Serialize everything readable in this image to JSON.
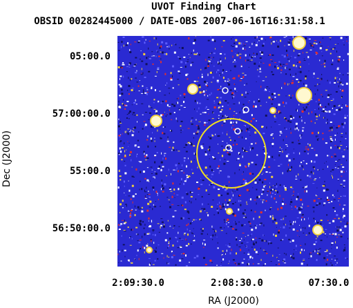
{
  "header": {
    "title": "UVOT Finding Chart",
    "subtitle": "OBSID 00282445000 / DATE-OBS 2007-06-16T16:31:58.1"
  },
  "axes": {
    "x_label": "RA (J2000)",
    "y_label": "Dec (J2000)",
    "x_ticks": [
      "2:09:30.0",
      "2:08:30.0",
      "07:30.0"
    ],
    "y_ticks": [
      "05:00.0",
      "57:00:00.0",
      "55:00.0",
      "56:50:00.0"
    ]
  }
}
